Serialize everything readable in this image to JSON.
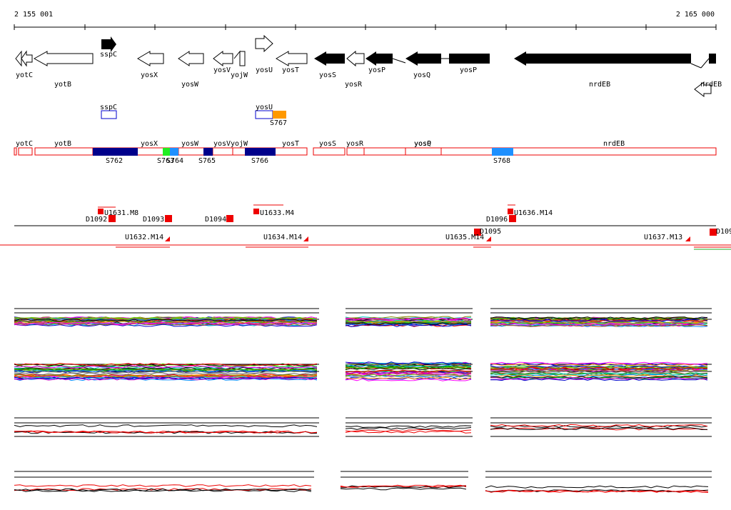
{
  "ruler": {
    "start": "2 155 001",
    "end": "2 165 000"
  },
  "genes": [
    "yotC",
    "yotB",
    "sspC",
    "yosX",
    "yosW",
    "yosV",
    "yojW",
    "yosU",
    "yosT",
    "yosS",
    "yosR",
    "yosP",
    "yosQ",
    "yosP",
    "nrdEB",
    "nrdEB"
  ],
  "domains": [
    "sspC",
    "yosU",
    "S767"
  ],
  "segments": {
    "genes": [
      "yotC",
      "yotB",
      "yosX",
      "yosW",
      "yosV",
      "yojW",
      "yosT",
      "yosS",
      "yosR",
      "yosP",
      "yosQ",
      "nrdEB"
    ],
    "clusters": [
      "S762",
      "S763",
      "S764",
      "S765",
      "S766",
      "S768"
    ]
  },
  "probes": [
    "D1092",
    "U1631.M8",
    "D1093",
    "D1094",
    "U1633.M4",
    "D1096",
    "U1636.M14",
    "U1632.M14",
    "U1634.M14",
    "U1635.M14",
    "D1095",
    "U1637.M13",
    "D109"
  ]
}
